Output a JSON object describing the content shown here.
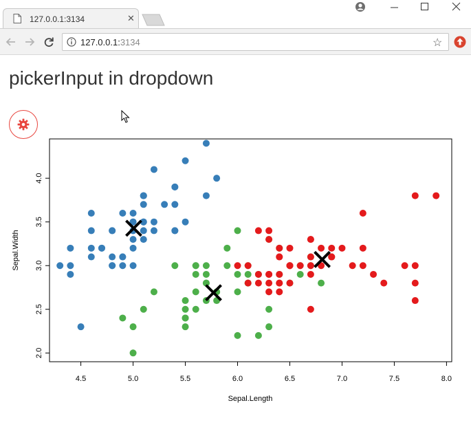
{
  "browser": {
    "tab_title": "127.0.0.1:3134",
    "url_host": "127.0.0.1:",
    "url_port": "3134"
  },
  "page": {
    "title": "pickerInput in dropdown"
  },
  "colors": {
    "setosa": "#377eb8",
    "versicolor": "#4daf4a",
    "virginica": "#e41a1c",
    "gear": "#e8463f"
  },
  "icons": {
    "gear_button": "gear-icon",
    "tab": "page-icon",
    "info": "info-icon",
    "bookmark": "star-icon"
  },
  "chart_data": {
    "type": "scatter",
    "xlabel": "Sepal.Length",
    "ylabel": "Sepal.Width",
    "xlim": [
      4.2,
      8.05
    ],
    "ylim": [
      1.9,
      4.45
    ],
    "xticks": [
      4.5,
      5.0,
      5.5,
      6.0,
      6.5,
      7.0,
      7.5,
      8.0
    ],
    "yticks": [
      2.0,
      2.5,
      3.0,
      3.5,
      4.0
    ],
    "xtick_labels": [
      "4.5",
      "5.0",
      "5.5",
      "6.0",
      "6.5",
      "7.0",
      "7.5",
      "8.0"
    ],
    "ytick_labels": [
      "2.0",
      "2.5",
      "3.0",
      "3.5",
      "4.0"
    ],
    "grid": false,
    "series": [
      {
        "color": "#377eb8",
        "points": [
          [
            5.1,
            3.5
          ],
          [
            4.9,
            3.0
          ],
          [
            4.7,
            3.2
          ],
          [
            4.6,
            3.1
          ],
          [
            5.0,
            3.6
          ],
          [
            5.4,
            3.9
          ],
          [
            4.6,
            3.4
          ],
          [
            5.0,
            3.4
          ],
          [
            4.4,
            2.9
          ],
          [
            4.9,
            3.1
          ],
          [
            5.4,
            3.7
          ],
          [
            4.8,
            3.4
          ],
          [
            4.8,
            3.0
          ],
          [
            4.3,
            3.0
          ],
          [
            5.8,
            4.0
          ],
          [
            5.7,
            4.4
          ],
          [
            5.4,
            3.9
          ],
          [
            5.1,
            3.5
          ],
          [
            5.7,
            3.8
          ],
          [
            5.1,
            3.8
          ],
          [
            5.4,
            3.4
          ],
          [
            5.1,
            3.7
          ],
          [
            4.6,
            3.6
          ],
          [
            5.1,
            3.3
          ],
          [
            4.8,
            3.4
          ],
          [
            5.0,
            3.0
          ],
          [
            5.0,
            3.4
          ],
          [
            5.2,
            3.5
          ],
          [
            5.2,
            3.4
          ],
          [
            4.7,
            3.2
          ],
          [
            4.8,
            3.1
          ],
          [
            5.4,
            3.4
          ],
          [
            5.2,
            4.1
          ],
          [
            5.5,
            4.2
          ],
          [
            4.9,
            3.1
          ],
          [
            5.0,
            3.2
          ],
          [
            5.5,
            3.5
          ],
          [
            4.9,
            3.6
          ],
          [
            4.4,
            3.0
          ],
          [
            5.1,
            3.4
          ],
          [
            5.0,
            3.5
          ],
          [
            4.5,
            2.3
          ],
          [
            4.4,
            3.2
          ],
          [
            5.0,
            3.5
          ],
          [
            5.1,
            3.8
          ],
          [
            4.8,
            3.0
          ],
          [
            5.1,
            3.8
          ],
          [
            4.6,
            3.2
          ],
          [
            5.3,
            3.7
          ],
          [
            5.0,
            3.3
          ]
        ]
      },
      {
        "color": "#4daf4a",
        "points": [
          [
            6.4,
            3.2
          ],
          [
            5.5,
            2.3
          ],
          [
            5.7,
            2.8
          ],
          [
            6.3,
            3.3
          ],
          [
            4.9,
            2.4
          ],
          [
            6.6,
            2.9
          ],
          [
            5.2,
            2.7
          ],
          [
            5.0,
            2.0
          ],
          [
            5.9,
            3.0
          ],
          [
            6.0,
            2.2
          ],
          [
            6.1,
            2.9
          ],
          [
            5.6,
            2.9
          ],
          [
            5.6,
            3.0
          ],
          [
            5.8,
            2.7
          ],
          [
            6.2,
            2.2
          ],
          [
            5.6,
            2.5
          ],
          [
            5.9,
            3.2
          ],
          [
            6.1,
            2.8
          ],
          [
            6.3,
            2.5
          ],
          [
            6.1,
            2.8
          ],
          [
            6.4,
            2.9
          ],
          [
            6.6,
            3.0
          ],
          [
            6.8,
            2.8
          ],
          [
            6.7,
            3.0
          ],
          [
            6.0,
            2.9
          ],
          [
            5.7,
            2.6
          ],
          [
            5.5,
            2.4
          ],
          [
            5.5,
            2.4
          ],
          [
            5.8,
            2.7
          ],
          [
            6.0,
            2.7
          ],
          [
            5.4,
            3.0
          ],
          [
            6.0,
            3.4
          ],
          [
            6.7,
            3.1
          ],
          [
            6.3,
            2.3
          ],
          [
            5.6,
            3.0
          ],
          [
            5.5,
            2.5
          ],
          [
            5.5,
            2.6
          ],
          [
            6.1,
            3.0
          ],
          [
            5.8,
            2.6
          ],
          [
            5.0,
            2.3
          ],
          [
            5.6,
            2.7
          ],
          [
            5.7,
            3.0
          ],
          [
            5.7,
            2.9
          ],
          [
            6.2,
            2.9
          ],
          [
            5.1,
            2.5
          ],
          [
            5.7,
            2.8
          ],
          [
            6.5,
            2.8
          ],
          [
            6.9,
            3.1
          ]
        ]
      },
      {
        "color": "#e41a1c",
        "points": [
          [
            6.3,
            3.3
          ],
          [
            7.1,
            3.0
          ],
          [
            6.5,
            3.0
          ],
          [
            7.6,
            3.0
          ],
          [
            7.3,
            2.9
          ],
          [
            6.7,
            2.5
          ],
          [
            7.2,
            3.6
          ],
          [
            6.5,
            3.2
          ],
          [
            6.4,
            2.7
          ],
          [
            6.8,
            3.0
          ],
          [
            6.4,
            3.2
          ],
          [
            6.5,
            3.0
          ],
          [
            7.7,
            3.8
          ],
          [
            7.7,
            2.6
          ],
          [
            6.9,
            3.2
          ],
          [
            7.7,
            2.8
          ],
          [
            6.3,
            2.7
          ],
          [
            6.7,
            3.3
          ],
          [
            7.2,
            3.2
          ],
          [
            6.2,
            2.8
          ],
          [
            6.4,
            2.8
          ],
          [
            7.2,
            3.0
          ],
          [
            7.4,
            2.8
          ],
          [
            7.9,
            3.8
          ],
          [
            6.4,
            2.8
          ],
          [
            6.3,
            2.8
          ],
          [
            7.7,
            3.0
          ],
          [
            6.3,
            3.4
          ],
          [
            6.4,
            3.1
          ],
          [
            6.0,
            3.0
          ],
          [
            6.9,
            3.1
          ],
          [
            6.7,
            3.1
          ],
          [
            6.9,
            3.1
          ],
          [
            6.8,
            3.2
          ],
          [
            6.7,
            3.3
          ],
          [
            6.7,
            3.0
          ],
          [
            6.5,
            3.0
          ],
          [
            6.2,
            3.4
          ],
          [
            7.0,
            3.2
          ],
          [
            6.9,
            3.1
          ],
          [
            6.6,
            3.0
          ],
          [
            6.5,
            2.8
          ],
          [
            6.3,
            2.9
          ],
          [
            6.7,
            2.9
          ],
          [
            6.1,
            2.8
          ],
          [
            6.4,
            2.9
          ],
          [
            6.1,
            3.0
          ],
          [
            6.2,
            2.9
          ],
          [
            6.4,
            3.1
          ],
          [
            6.3,
            2.9
          ]
        ]
      }
    ],
    "centers": [
      [
        5.006,
        3.428
      ],
      [
        5.77,
        2.69
      ],
      [
        6.81,
        3.07
      ]
    ]
  }
}
